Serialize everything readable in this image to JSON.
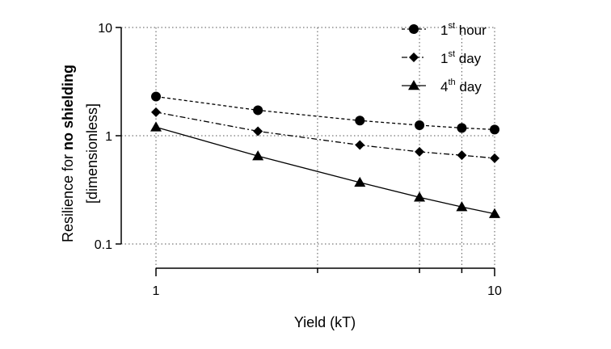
{
  "chart_data": {
    "type": "line",
    "x_scale": "log",
    "y_scale": "log",
    "xlim": [
      1,
      10
    ],
    "ylim": [
      0.1,
      10
    ],
    "x_ticks": [
      {
        "value": 1,
        "label": "1"
      },
      {
        "value": 10,
        "label": "10"
      }
    ],
    "x_minor_ticks": [
      3,
      6,
      8
    ],
    "y_ticks": [
      {
        "value": 0.1,
        "label": "0.1"
      },
      {
        "value": 1,
        "label": "1"
      },
      {
        "value": 10,
        "label": "10"
      }
    ],
    "grid": "dotted lines at x = 1, 3, 6, 8, 10 and y = 0.1, 1, 10",
    "xlabel": "Yield (kT)",
    "ylabel": {
      "line1_prefix": "Resilience for ",
      "line1_bold": "no shielding",
      "line2": "[dimensionless]"
    },
    "legend_position": "top-right",
    "series": [
      {
        "name": {
          "base": "1",
          "sup": "st",
          "rest": " hour"
        },
        "marker": "circle",
        "line_style": "dashed",
        "x": [
          1,
          2,
          4,
          6,
          8,
          10
        ],
        "y": [
          2.3,
          1.72,
          1.38,
          1.25,
          1.18,
          1.14
        ]
      },
      {
        "name": {
          "base": "1",
          "sup": "st",
          "rest": " day"
        },
        "marker": "diamond",
        "line_style": "dash-dot",
        "x": [
          1,
          2,
          4,
          6,
          8,
          10
        ],
        "y": [
          1.65,
          1.1,
          0.82,
          0.71,
          0.66,
          0.62
        ]
      },
      {
        "name": {
          "base": "4",
          "sup": "th",
          "rest": " day"
        },
        "marker": "triangle",
        "line_style": "solid",
        "x": [
          1,
          2,
          4,
          6,
          8,
          10
        ],
        "y": [
          1.2,
          0.65,
          0.37,
          0.27,
          0.22,
          0.19
        ]
      }
    ]
  }
}
